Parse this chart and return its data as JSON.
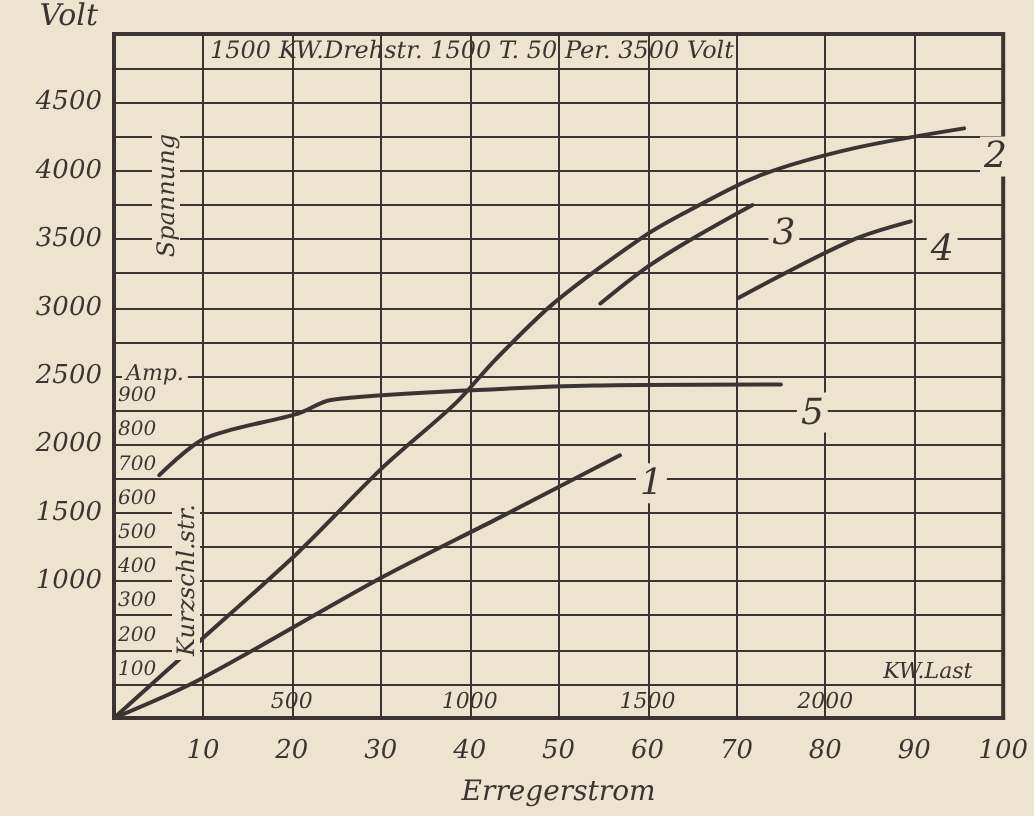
{
  "chart_data": {
    "type": "line",
    "title": "1500 KW.Drehstr. 1500 T. 50 Per. 3500 Volt",
    "xlabel": "Erregerstrom",
    "ylabel": "Volt",
    "y2label": "Amp.",
    "x2label": "KW.Last",
    "annotations": [
      "Spannung",
      "Kurzschl.str."
    ],
    "xlim": [
      0,
      100
    ],
    "xticks": [
      10,
      20,
      30,
      40,
      50,
      60,
      70,
      80,
      90,
      100
    ],
    "x2lim": [
      0,
      2500
    ],
    "x2ticks": [
      500,
      1000,
      1500,
      2000
    ],
    "ylim": [
      0,
      5000
    ],
    "yticks": [
      1000,
      1500,
      2000,
      2500,
      3000,
      3500,
      4000,
      4500
    ],
    "y2lim": [
      0,
      2000
    ],
    "y2ticks": [
      100,
      200,
      300,
      400,
      500,
      600,
      700,
      800,
      900,
      {
        "value": 1000,
        "label": null
      },
      {
        "value": 1100,
        "label": null
      },
      {
        "value": 1200,
        "label": null
      },
      {
        "value": 1300,
        "label": null
      },
      {
        "value": 1400,
        "label": null
      },
      {
        "value": 1500,
        "label": null
      },
      {
        "value": 1600,
        "label": null
      },
      {
        "value": 1700,
        "label": null
      },
      {
        "value": 1800,
        "label": null
      },
      {
        "value": 1900,
        "label": null
      }
    ],
    "grid": true,
    "legend": false,
    "marker": "none",
    "line_style": "solid",
    "series": [
      {
        "name": "1",
        "color": "#3a3530",
        "x": [
          0,
          9.6,
          30.2,
          42.9,
          56.9
        ],
        "values": [
          0,
          280,
          1030,
          1450,
          1920
        ]
      },
      {
        "name": "2",
        "color": "#3a3530",
        "x": [
          0,
          9.6,
          20.7,
          30.2,
          38.4,
          42.9,
          49.6,
          59.6,
          64.4,
          72.4,
          82.9,
          95.6
        ],
        "values": [
          0,
          560,
          1210,
          1830,
          2300,
          2620,
          3040,
          3520,
          3700,
          3960,
          4160,
          4310
        ]
      },
      {
        "name": "3",
        "color": "#3a3530",
        "x": [
          54.7,
          59.6,
          64.7,
          71.8
        ],
        "values": [
          3030,
          3280,
          3490,
          3750
        ]
      },
      {
        "name": "4",
        "color": "#3a3530",
        "x": [
          70.2,
          82.9,
          89.6
        ],
        "values": [
          3070,
          3490,
          3630
        ]
      },
      {
        "name": "5",
        "color": "#3a3530",
        "axis": "y2",
        "x": [
          5.1,
          10.2,
          20.7,
          24.4,
          40.2,
          54,
          75
        ],
        "values": [
          710,
          817,
          890,
          930,
          958,
          972,
          975
        ]
      }
    ]
  }
}
